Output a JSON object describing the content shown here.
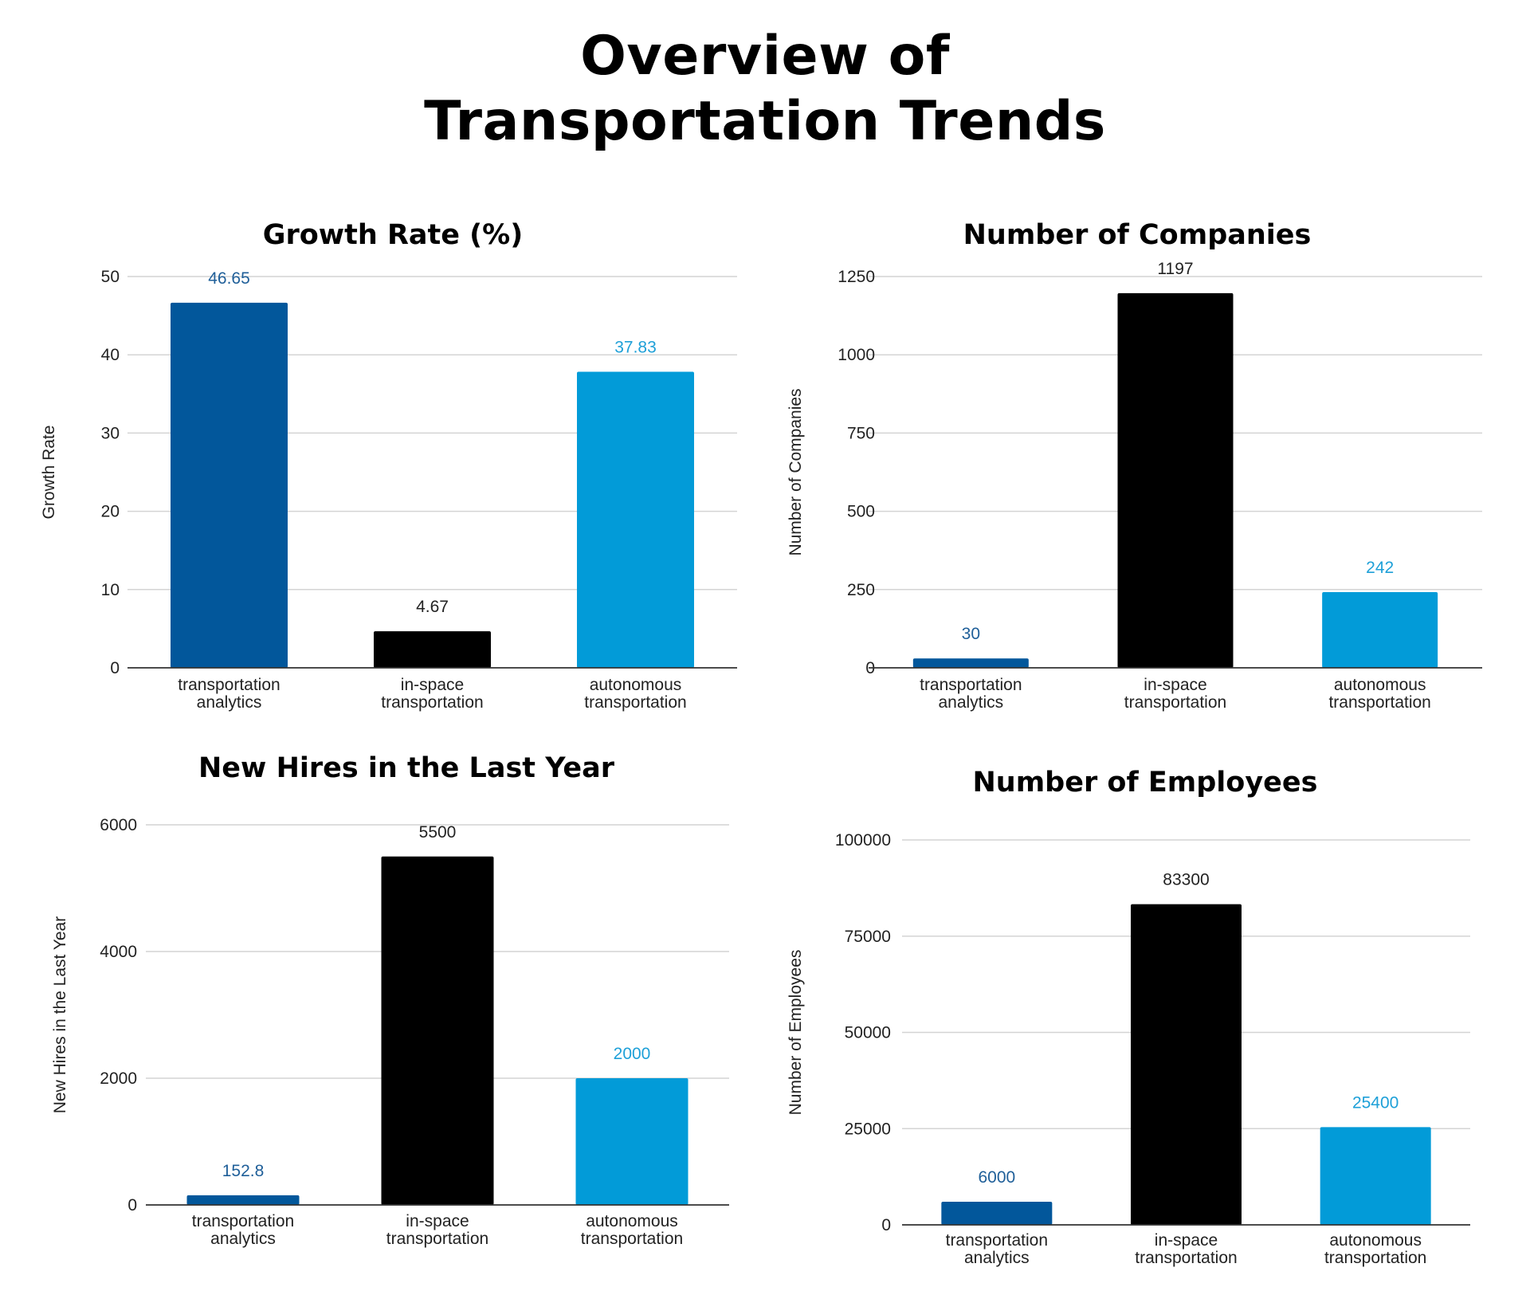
{
  "title": {
    "line1": "Overview of",
    "line2": "Transportation Trends"
  },
  "colors": {
    "analytics": "#02579b",
    "in_space": "#000000",
    "autonomous": "#029bd8",
    "analytics_label": "#1f5f99",
    "autonomous_label": "#1ea0d8",
    "in_space_label": "#222222"
  },
  "chart_data": [
    {
      "type": "bar",
      "title": "Growth Rate (%)",
      "xlabel": "",
      "ylabel": "Growth Rate",
      "categories": [
        [
          "transportation",
          "analytics"
        ],
        [
          "in-space",
          "transportation"
        ],
        [
          "autonomous",
          "transportation"
        ]
      ],
      "values": [
        46.65,
        4.67,
        37.83
      ],
      "value_labels": [
        "46.65",
        "4.67",
        "37.83"
      ],
      "ylim": [
        0,
        50
      ],
      "yticks": [
        0,
        10,
        20,
        30,
        40,
        50
      ],
      "grid": true
    },
    {
      "type": "bar",
      "title": "Number of Companies",
      "xlabel": "",
      "ylabel": "Number of Companies",
      "categories": [
        [
          "transportation",
          "analytics"
        ],
        [
          "in-space",
          "transportation"
        ],
        [
          "autonomous",
          "transportation"
        ]
      ],
      "values": [
        30,
        1197,
        242
      ],
      "value_labels": [
        "30",
        "1197",
        "242"
      ],
      "ylim": [
        0,
        1250
      ],
      "yticks": [
        0,
        250,
        500,
        750,
        1000,
        1250
      ],
      "grid": true
    },
    {
      "type": "bar",
      "title": "New Hires in the Last Year",
      "xlabel": "",
      "ylabel": "New Hires in the Last Year",
      "categories": [
        [
          "transportation",
          "analytics"
        ],
        [
          "in-space",
          "transportation"
        ],
        [
          "autonomous",
          "transportation"
        ]
      ],
      "values": [
        152.8,
        5500,
        2000
      ],
      "value_labels": [
        "152.8",
        "5500",
        "2000"
      ],
      "ylim": [
        0,
        6000
      ],
      "yticks": [
        0,
        2000,
        4000,
        6000
      ],
      "grid": true
    },
    {
      "type": "bar",
      "title": "Number of Employees",
      "xlabel": "",
      "ylabel": "Number of Employees",
      "categories": [
        [
          "transportation",
          "analytics"
        ],
        [
          "in-space",
          "transportation"
        ],
        [
          "autonomous",
          "transportation"
        ]
      ],
      "values": [
        6000,
        83300,
        25400
      ],
      "value_labels": [
        "6000",
        "83300",
        "25400"
      ],
      "ylim": [
        0,
        100000
      ],
      "yticks": [
        0,
        25000,
        50000,
        75000,
        100000
      ],
      "grid": true
    }
  ]
}
